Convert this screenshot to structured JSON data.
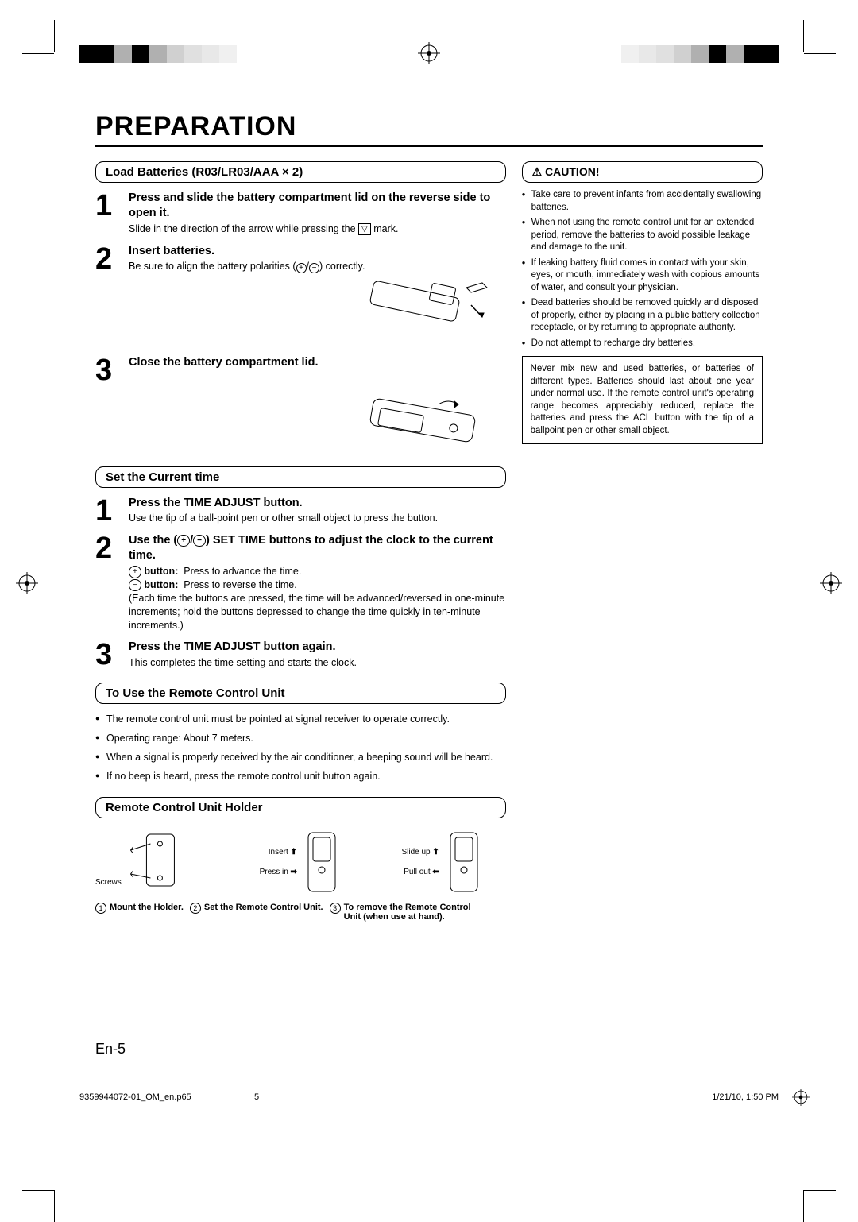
{
  "colorbar_left": [
    "#000000",
    "#000000",
    "#b0b0b0",
    "#000000",
    "#b0b0b0",
    "#d0d0d0",
    "#e0e0e0",
    "#e8e8e8",
    "#f0f0f0"
  ],
  "colorbar_right": [
    "#f0f0f0",
    "#e8e8e8",
    "#e0e0e0",
    "#d0d0d0",
    "#b0b0b0",
    "#000000",
    "#b0b0b0",
    "#000000",
    "#000000"
  ],
  "title": "PREPARATION",
  "sec1": {
    "heading": "Load Batteries (R03/LR03/AAA × 2)",
    "steps": [
      {
        "n": "1",
        "title": "Press and slide the battery compartment lid on the reverse side to open it.",
        "desc": "Slide in the direction of the arrow while pressing the ▽ mark."
      },
      {
        "n": "2",
        "title": "Insert batteries.",
        "desc": "Be sure to align the battery polarities (⊕/⊖) correctly."
      },
      {
        "n": "3",
        "title": "Close the battery compartment lid.",
        "desc": ""
      }
    ]
  },
  "sec2": {
    "heading": "Set the Current time",
    "steps": [
      {
        "n": "1",
        "title": "Press the TIME ADJUST button.",
        "desc": "Use the tip of a ball-point pen or other small object to press the button."
      },
      {
        "n": "2",
        "title": "Use the (⊕/⊖) SET TIME buttons to adjust the clock to the current time.",
        "lines": [
          "⊕ button:  Press to advance the time.",
          "⊖ button:  Press to reverse the time.",
          "(Each time the buttons are pressed, the time will be advanced/reversed in one-minute increments; hold the buttons depressed to change the time quickly in ten-minute increments.)"
        ]
      },
      {
        "n": "3",
        "title": "Press the TIME ADJUST button again.",
        "desc": "This completes the time setting and starts the clock."
      }
    ]
  },
  "sec3": {
    "heading": "To Use the Remote Control Unit",
    "bullets": [
      "The remote control unit must be pointed at signal receiver to operate correctly.",
      "Operating range: About 7 meters.",
      "When a signal is properly received by the air conditioner, a beeping sound will be heard.",
      "If no beep is heard, press the remote control unit button again."
    ]
  },
  "sec4": {
    "heading": "Remote Control Unit Holder",
    "labels": {
      "screws": "Screws",
      "insert": "Insert",
      "pressin": "Press in",
      "slideup": "Slide up",
      "pullout": "Pull out"
    },
    "captions": [
      {
        "n": "①",
        "t": "Mount the Holder."
      },
      {
        "n": "②",
        "t": "Set the Remote Control Unit."
      },
      {
        "n": "③",
        "t": "To remove the Remote Control Unit (when use at hand)."
      }
    ]
  },
  "caution": {
    "heading": "CAUTION!",
    "bullets": [
      "Take care to prevent infants from accidentally swallowing batteries.",
      "When not using the remote control unit for an extended period, remove the batteries to avoid possible leakage and damage to the unit.",
      "If leaking battery fluid comes in contact with your skin, eyes, or mouth, immediately wash with copious amounts of water, and consult your physician.",
      "Dead batteries should be removed quickly and disposed of properly, either by placing in a public battery collection receptacle, or by returning to appropriate authority.",
      "Do not attempt to recharge dry batteries."
    ],
    "box": "Never mix new and used batteries, or batteries of different types.\nBatteries should last about one year under normal use. If the remote control unit's operating range becomes appreciably reduced, replace the batteries and press the ACL button with the tip of a ballpoint pen or other small object."
  },
  "page_num": "En-5",
  "footer": {
    "file": "9359944072-01_OM_en.p65",
    "page": "5",
    "date": "1/21/10, 1:50 PM"
  }
}
